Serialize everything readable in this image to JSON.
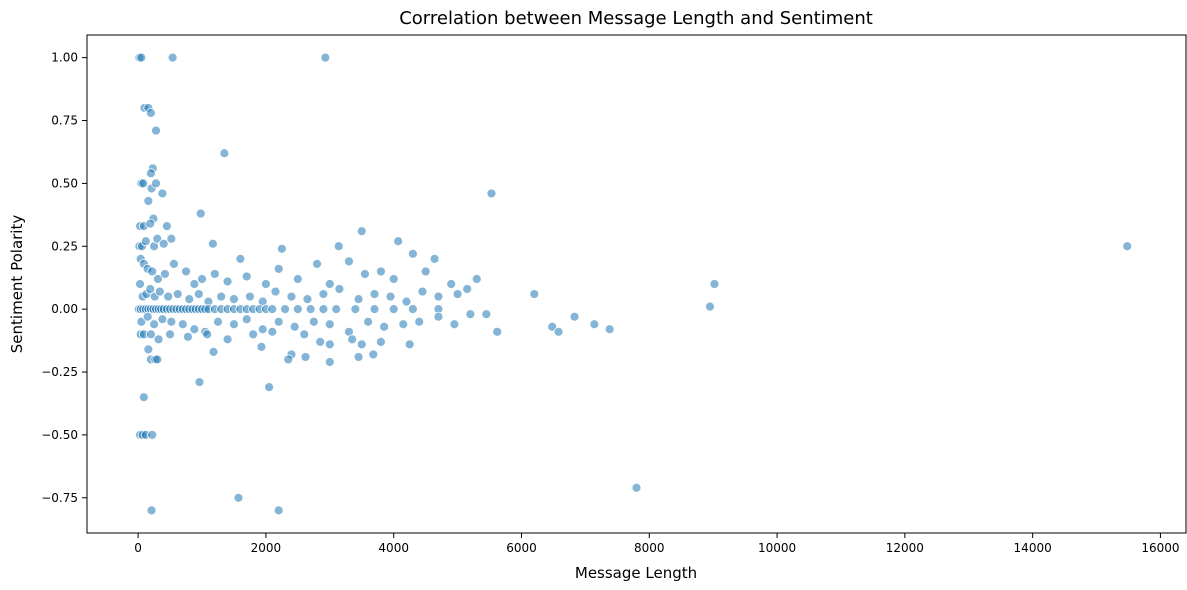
{
  "chart_data": {
    "type": "scatter",
    "title": "Correlation between Message Length and Sentiment",
    "xlabel": "Message Length",
    "ylabel": "Sentiment Polarity",
    "xlim": [
      -800,
      16400
    ],
    "ylim": [
      -0.89,
      1.09
    ],
    "xticks": [
      0,
      2000,
      4000,
      6000,
      8000,
      10000,
      12000,
      14000,
      16000
    ],
    "xtick_labels": [
      "0",
      "2000",
      "4000",
      "6000",
      "8000",
      "10000",
      "12000",
      "14000",
      "16000"
    ],
    "yticks": [
      -0.75,
      -0.5,
      -0.25,
      0.0,
      0.25,
      0.5,
      0.75,
      1.0
    ],
    "ytick_labels": [
      "−0.75",
      "−0.50",
      "−0.25",
      "0.00",
      "0.25",
      "0.50",
      "0.75",
      "1.00"
    ],
    "grid": false,
    "legend": "none",
    "color": "#1f77b4",
    "points": [
      [
        20,
        1.0
      ],
      [
        50,
        1.0
      ],
      [
        540,
        1.0
      ],
      [
        2930,
        1.0
      ],
      [
        100,
        0.8
      ],
      [
        160,
        0.8
      ],
      [
        200,
        0.78
      ],
      [
        280,
        0.71
      ],
      [
        1350,
        0.62
      ],
      [
        230,
        0.56
      ],
      [
        200,
        0.54
      ],
      [
        50,
        0.5
      ],
      [
        80,
        0.5
      ],
      [
        210,
        0.48
      ],
      [
        280,
        0.5
      ],
      [
        380,
        0.46
      ],
      [
        160,
        0.43
      ],
      [
        240,
        0.36
      ],
      [
        450,
        0.33
      ],
      [
        30,
        0.33
      ],
      [
        90,
        0.33
      ],
      [
        190,
        0.34
      ],
      [
        980,
        0.38
      ],
      [
        5530,
        0.46
      ],
      [
        20,
        0.25
      ],
      [
        60,
        0.25
      ],
      [
        120,
        0.27
      ],
      [
        250,
        0.25
      ],
      [
        300,
        0.28
      ],
      [
        400,
        0.26
      ],
      [
        520,
        0.28
      ],
      [
        1170,
        0.26
      ],
      [
        1600,
        0.2
      ],
      [
        2250,
        0.24
      ],
      [
        3140,
        0.25
      ],
      [
        3500,
        0.31
      ],
      [
        4070,
        0.27
      ],
      [
        4640,
        0.2
      ],
      [
        15480,
        0.25
      ],
      [
        40,
        0.2
      ],
      [
        90,
        0.18
      ],
      [
        150,
        0.16
      ],
      [
        220,
        0.15
      ],
      [
        310,
        0.12
      ],
      [
        420,
        0.14
      ],
      [
        560,
        0.18
      ],
      [
        750,
        0.15
      ],
      [
        880,
        0.1
      ],
      [
        1000,
        0.12
      ],
      [
        1200,
        0.14
      ],
      [
        1400,
        0.11
      ],
      [
        1700,
        0.13
      ],
      [
        2000,
        0.1
      ],
      [
        2200,
        0.16
      ],
      [
        2500,
        0.12
      ],
      [
        2800,
        0.18
      ],
      [
        3000,
        0.1
      ],
      [
        3300,
        0.19
      ],
      [
        3550,
        0.14
      ],
      [
        3800,
        0.15
      ],
      [
        4000,
        0.12
      ],
      [
        4300,
        0.22
      ],
      [
        4500,
        0.15
      ],
      [
        4900,
        0.1
      ],
      [
        5300,
        0.12
      ],
      [
        6200,
        0.06
      ],
      [
        9020,
        0.1
      ],
      [
        8950,
        0.01
      ],
      [
        30,
        0.1
      ],
      [
        70,
        0.05
      ],
      [
        130,
        0.06
      ],
      [
        190,
        0.08
      ],
      [
        260,
        0.05
      ],
      [
        340,
        0.07
      ],
      [
        470,
        0.05
      ],
      [
        620,
        0.06
      ],
      [
        800,
        0.04
      ],
      [
        950,
        0.06
      ],
      [
        1100,
        0.03
      ],
      [
        1300,
        0.05
      ],
      [
        1500,
        0.04
      ],
      [
        1750,
        0.05
      ],
      [
        1950,
        0.03
      ],
      [
        2150,
        0.07
      ],
      [
        2400,
        0.05
      ],
      [
        2650,
        0.04
      ],
      [
        2900,
        0.06
      ],
      [
        3150,
        0.08
      ],
      [
        3450,
        0.04
      ],
      [
        3700,
        0.06
      ],
      [
        3950,
        0.05
      ],
      [
        4200,
        0.03
      ],
      [
        4450,
        0.07
      ],
      [
        4700,
        0.05
      ],
      [
        5000,
        0.06
      ],
      [
        5150,
        0.08
      ],
      [
        10,
        0.0
      ],
      [
        40,
        0.0
      ],
      [
        80,
        0.0
      ],
      [
        120,
        0.0
      ],
      [
        160,
        0.0
      ],
      [
        200,
        0.0
      ],
      [
        240,
        0.0
      ],
      [
        280,
        0.0
      ],
      [
        320,
        0.0
      ],
      [
        360,
        0.0
      ],
      [
        400,
        0.0
      ],
      [
        450,
        0.0
      ],
      [
        500,
        0.0
      ],
      [
        550,
        0.0
      ],
      [
        600,
        0.0
      ],
      [
        650,
        0.0
      ],
      [
        700,
        0.0
      ],
      [
        750,
        0.0
      ],
      [
        800,
        0.0
      ],
      [
        850,
        0.0
      ],
      [
        900,
        0.0
      ],
      [
        950,
        0.0
      ],
      [
        1000,
        0.0
      ],
      [
        1050,
        0.0
      ],
      [
        1100,
        0.0
      ],
      [
        1200,
        0.0
      ],
      [
        1300,
        0.0
      ],
      [
        1400,
        0.0
      ],
      [
        1500,
        0.0
      ],
      [
        1600,
        0.0
      ],
      [
        1700,
        0.0
      ],
      [
        1800,
        0.0
      ],
      [
        1900,
        0.0
      ],
      [
        2000,
        0.0
      ],
      [
        2100,
        0.0
      ],
      [
        2300,
        0.0
      ],
      [
        2500,
        0.0
      ],
      [
        2700,
        0.0
      ],
      [
        2900,
        0.0
      ],
      [
        3100,
        0.0
      ],
      [
        3400,
        0.0
      ],
      [
        3700,
        0.0
      ],
      [
        4000,
        0.0
      ],
      [
        4300,
        0.0
      ],
      [
        4700,
        0.0
      ],
      [
        50,
        -0.05
      ],
      [
        150,
        -0.03
      ],
      [
        250,
        -0.06
      ],
      [
        380,
        -0.04
      ],
      [
        520,
        -0.05
      ],
      [
        700,
        -0.06
      ],
      [
        880,
        -0.08
      ],
      [
        1050,
        -0.09
      ],
      [
        1250,
        -0.05
      ],
      [
        1500,
        -0.06
      ],
      [
        1700,
        -0.04
      ],
      [
        1950,
        -0.08
      ],
      [
        2200,
        -0.05
      ],
      [
        2450,
        -0.07
      ],
      [
        2750,
        -0.05
      ],
      [
        3000,
        -0.06
      ],
      [
        3300,
        -0.09
      ],
      [
        3600,
        -0.05
      ],
      [
        3850,
        -0.07
      ],
      [
        4150,
        -0.06
      ],
      [
        4400,
        -0.05
      ],
      [
        4700,
        -0.03
      ],
      [
        4950,
        -0.06
      ],
      [
        5200,
        -0.02
      ],
      [
        5450,
        -0.02
      ],
      [
        5620,
        -0.09
      ],
      [
        6480,
        -0.07
      ],
      [
        6580,
        -0.09
      ],
      [
        6830,
        -0.03
      ],
      [
        7140,
        -0.06
      ],
      [
        7380,
        -0.08
      ],
      [
        40,
        -0.1
      ],
      [
        90,
        -0.1
      ],
      [
        200,
        -0.1
      ],
      [
        320,
        -0.12
      ],
      [
        500,
        -0.1
      ],
      [
        780,
        -0.11
      ],
      [
        1080,
        -0.1
      ],
      [
        1400,
        -0.12
      ],
      [
        1800,
        -0.1
      ],
      [
        2100,
        -0.09
      ],
      [
        2600,
        -0.1
      ],
      [
        2850,
        -0.13
      ],
      [
        3000,
        -0.14
      ],
      [
        3350,
        -0.12
      ],
      [
        3500,
        -0.14
      ],
      [
        3800,
        -0.13
      ],
      [
        4250,
        -0.14
      ],
      [
        160,
        -0.16
      ],
      [
        1180,
        -0.17
      ],
      [
        2400,
        -0.18
      ],
      [
        3450,
        -0.19
      ],
      [
        3680,
        -0.18
      ],
      [
        200,
        -0.2
      ],
      [
        270,
        -0.2
      ],
      [
        300,
        -0.2
      ],
      [
        1930,
        -0.15
      ],
      [
        2350,
        -0.2
      ],
      [
        2620,
        -0.19
      ],
      [
        3000,
        -0.21
      ],
      [
        960,
        -0.29
      ],
      [
        2050,
        -0.31
      ],
      [
        90,
        -0.35
      ],
      [
        30,
        -0.5
      ],
      [
        70,
        -0.5
      ],
      [
        120,
        -0.5
      ],
      [
        220,
        -0.5
      ],
      [
        1570,
        -0.75
      ],
      [
        7800,
        -0.71
      ],
      [
        210,
        -0.8
      ],
      [
        2200,
        -0.8
      ]
    ]
  }
}
